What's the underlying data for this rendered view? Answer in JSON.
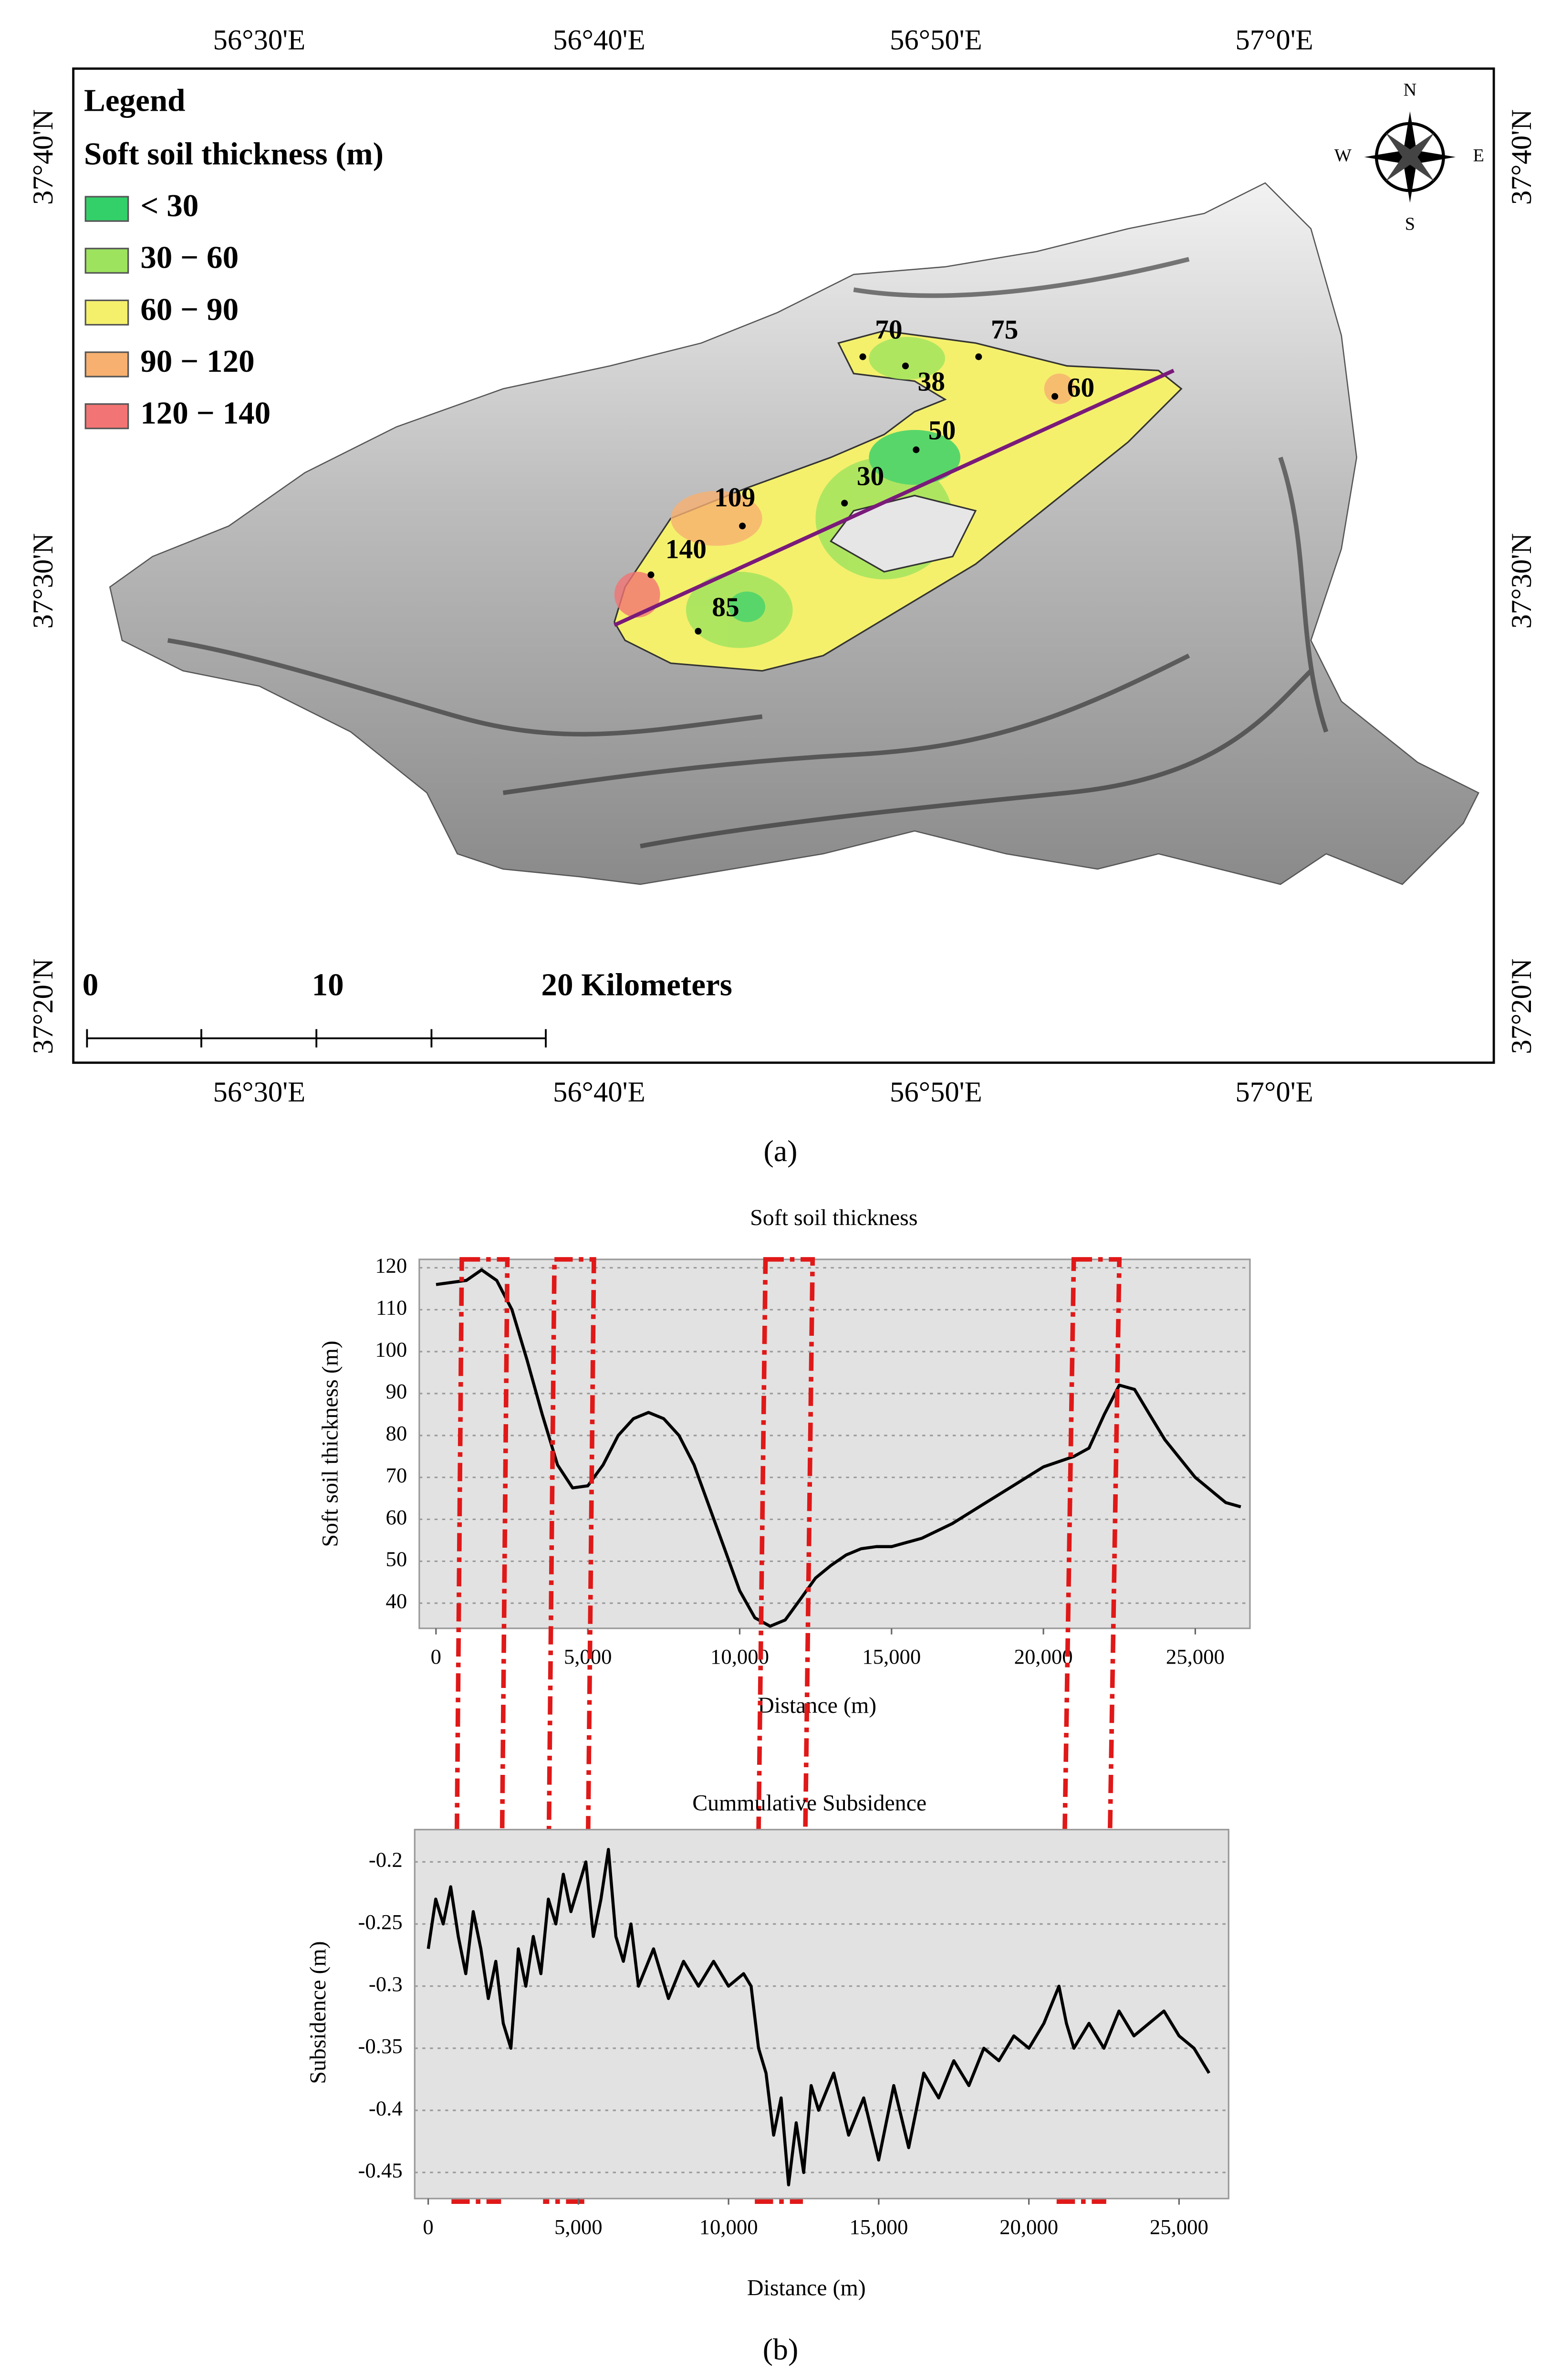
{
  "captions": [
    "(a)",
    "(b)"
  ],
  "chart_data": [
    {
      "type": "map",
      "legend_title": "Legend",
      "legend_subtitle": "Soft soil thickness (m)",
      "legend": [
        {
          "label": "< 30",
          "color": "#33d06a"
        },
        {
          "label": "30 − 60",
          "color": "#9de35e"
        },
        {
          "label": "60 − 90",
          "color": "#f4f06c"
        },
        {
          "label": "90 − 120",
          "color": "#f7b070"
        },
        {
          "label": "120 − 140",
          "color": "#f37474"
        }
      ],
      "point_values": [
        70,
        75,
        38,
        60,
        50,
        30,
        109,
        140,
        85
      ],
      "lon_ticks": [
        "56°30'E",
        "56°40'E",
        "56°50'E",
        "57°0'E"
      ],
      "lat_ticks": [
        "37°40'N",
        "37°30'N",
        "37°20'N"
      ],
      "scale_ticks": [
        0,
        10,
        {
          "value": 20,
          "label": "20 Kilometers"
        }
      ],
      "compass": [
        "N",
        "E",
        "S",
        "W"
      ]
    },
    {
      "type": "line",
      "title": "Soft soil thickness",
      "xlabel": "Distance (m)",
      "ylabel": "Soft soil thickness (m)",
      "x": [
        0,
        1000,
        1500,
        2000,
        2500,
        3000,
        3500,
        4000,
        4500,
        5000,
        5500,
        6000,
        6500,
        7000,
        7500,
        8000,
        8500,
        9000,
        9500,
        10000,
        10500,
        11000,
        11500,
        12000,
        12500,
        13000,
        13500,
        14000,
        14500,
        15000,
        16000,
        17000,
        18000,
        19000,
        20000,
        21000,
        21500,
        22000,
        22500,
        23000,
        23500,
        24000,
        25000,
        26000,
        26500
      ],
      "series": [
        {
          "color": "#000000",
          "values": [
            116,
            117,
            119.5,
            117,
            110,
            98,
            85,
            73,
            67.5,
            68,
            73,
            80,
            84,
            85.5,
            84,
            80,
            73,
            63,
            53,
            43,
            36.5,
            34.5,
            36,
            41,
            46,
            49,
            51.5,
            53,
            53.5,
            53.5,
            55.5,
            59,
            63.5,
            68,
            72.5,
            75,
            77,
            85,
            92,
            91,
            85,
            79,
            70,
            64,
            63
          ]
        }
      ],
      "xlim": [
        -550,
        26800
      ],
      "ylim": [
        34,
        122
      ],
      "xticks": [
        0,
        {
          "value": 5000,
          "label": "5,000"
        },
        {
          "value": 10000,
          "label": "10,000"
        },
        {
          "value": 15000,
          "label": "15,000"
        },
        {
          "value": 20000,
          "label": "20,000"
        },
        {
          "value": 25000,
          "label": "25,000"
        }
      ],
      "yticks": [
        40,
        50,
        60,
        70,
        80,
        90,
        100,
        110,
        120
      ],
      "grid": true,
      "highlight_ranges": [
        [
          850,
          2350
        ],
        [
          3900,
          5200
        ],
        [
          10850,
          12400
        ],
        [
          21000,
          22500
        ]
      ],
      "highlight_color": "#e01818"
    },
    {
      "type": "line",
      "title": "Cummulative Subsidence",
      "xlabel": "Distance (m)",
      "ylabel": "Subsidence (m)",
      "x": [
        0,
        250,
        500,
        750,
        1000,
        1250,
        1500,
        1750,
        2000,
        2250,
        2500,
        2750,
        3000,
        3250,
        3500,
        3750,
        4000,
        4250,
        4500,
        4750,
        5000,
        5250,
        5500,
        5750,
        6000,
        6250,
        6500,
        6750,
        7000,
        7500,
        8000,
        8500,
        9000,
        9500,
        10000,
        10500,
        10750,
        11000,
        11250,
        11500,
        11750,
        12000,
        12250,
        12500,
        12750,
        13000,
        13500,
        14000,
        14500,
        15000,
        15500,
        16000,
        16500,
        17000,
        17500,
        18000,
        18500,
        19000,
        19500,
        20000,
        20500,
        21000,
        21250,
        21500,
        22000,
        22500,
        23000,
        23500,
        24000,
        24500,
        25000,
        25500,
        26000
      ],
      "series": [
        {
          "color": "#000000",
          "values": [
            -0.27,
            -0.23,
            -0.25,
            -0.22,
            -0.26,
            -0.29,
            -0.24,
            -0.27,
            -0.31,
            -0.28,
            -0.33,
            -0.35,
            -0.27,
            -0.3,
            -0.26,
            -0.29,
            -0.23,
            -0.25,
            -0.21,
            -0.24,
            -0.22,
            -0.2,
            -0.26,
            -0.23,
            -0.19,
            -0.26,
            -0.28,
            -0.25,
            -0.3,
            -0.27,
            -0.31,
            -0.28,
            -0.3,
            -0.28,
            -0.3,
            -0.29,
            -0.3,
            -0.35,
            -0.37,
            -0.42,
            -0.39,
            -0.46,
            -0.41,
            -0.45,
            -0.38,
            -0.4,
            -0.37,
            -0.42,
            -0.39,
            -0.44,
            -0.38,
            -0.43,
            -0.37,
            -0.39,
            -0.36,
            -0.38,
            -0.35,
            -0.36,
            -0.34,
            -0.35,
            -0.33,
            -0.3,
            -0.33,
            -0.35,
            -0.33,
            -0.35,
            -0.32,
            -0.34,
            -0.33,
            -0.32,
            -0.34,
            -0.35,
            -0.37
          ]
        }
      ],
      "xlim": [
        -450,
        26650
      ],
      "ylim": [
        -0.471,
        -0.174
      ],
      "xticks": [
        0,
        {
          "value": 5000,
          "label": "5,000"
        },
        {
          "value": 10000,
          "label": "10,000"
        },
        {
          "value": 15000,
          "label": "15,000"
        },
        {
          "value": 20000,
          "label": "20,000"
        },
        {
          "value": 25000,
          "label": "25,000"
        }
      ],
      "yticks": [
        -0.2,
        -0.25,
        -0.3,
        -0.35,
        -0.4,
        -0.45
      ],
      "grid": true
    }
  ]
}
